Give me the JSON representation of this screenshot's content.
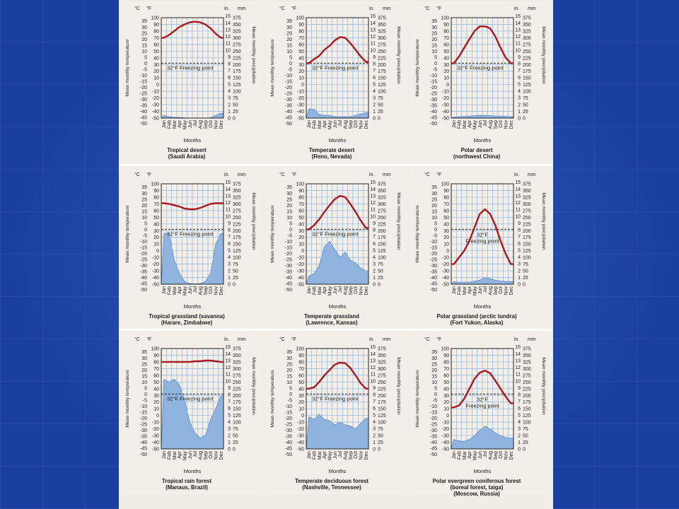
{
  "chart_data": [
    {
      "type": "line",
      "title": "Tropical desert",
      "subtitle": "(Saudi Arabia)",
      "temp_f": [
        70,
        74,
        80,
        86,
        90,
        93,
        94,
        93,
        90,
        84,
        76,
        70
      ],
      "precip_mm": [
        10,
        5,
        3,
        2,
        1,
        0,
        0,
        0,
        0,
        1,
        10,
        18
      ],
      "freezing_label": "32°F Freezing point"
    },
    {
      "type": "line",
      "title": "Temperate desert",
      "subtitle": "(Reno, Nevada)",
      "temp_f": [
        32,
        38,
        43,
        52,
        58,
        66,
        71,
        70,
        62,
        52,
        42,
        34
      ],
      "precip_mm": [
        34,
        33,
        13,
        10,
        10,
        5,
        5,
        5,
        5,
        10,
        15,
        20
      ],
      "freezing_label": "32°F Freezing point"
    },
    {
      "type": "line",
      "title": "Polar desert",
      "subtitle": "(northwest China)",
      "temp_f": [
        32,
        42,
        55,
        68,
        80,
        87,
        87,
        84,
        72,
        55,
        40,
        32
      ],
      "precip_mm": [
        4,
        5,
        6,
        7,
        9,
        10,
        10,
        9,
        8,
        7,
        6,
        5
      ],
      "freezing_label": "32°F Freezing point"
    },
    {
      "type": "line",
      "title": "Tropical grassland (savanna)",
      "subtitle": "(Harare, Zimbabwe)",
      "temp_f": [
        71,
        70,
        68,
        66,
        63,
        62,
        62,
        64,
        67,
        70,
        71,
        71
      ],
      "precip_mm": [
        190,
        190,
        90,
        40,
        10,
        2,
        1,
        2,
        10,
        40,
        150,
        190
      ],
      "freezing_label": "32°F Freezing point"
    },
    {
      "type": "line",
      "title": "Temperate grassland",
      "subtitle": "(Lawrence, Kansas)",
      "temp_f": [
        32,
        38,
        47,
        58,
        68,
        77,
        82,
        80,
        70,
        58,
        45,
        34
      ],
      "precip_mm": [
        30,
        40,
        70,
        140,
        160,
        130,
        100,
        120,
        90,
        80,
        60,
        50
      ],
      "freezing_label": "32°F Freezing point"
    },
    {
      "type": "line",
      "title": "Polar grassland (arctic tundra)",
      "subtitle": "(Fort Yukon, Alaska)",
      "temp_f": [
        -20,
        -10,
        0,
        15,
        35,
        55,
        62,
        55,
        38,
        15,
        -5,
        -20
      ],
      "precip_mm": [
        10,
        8,
        8,
        8,
        12,
        15,
        25,
        20,
        15,
        12,
        10,
        10
      ],
      "freezing_label": "32°F\nFreezing point"
    },
    {
      "type": "line",
      "title": "Tropical rain forest",
      "subtitle": "(Manaus, Brazil)",
      "temp_f": [
        80,
        80,
        80,
        80,
        80,
        80,
        81,
        81,
        82,
        82,
        81,
        80
      ],
      "precip_mm": [
        260,
        250,
        260,
        240,
        180,
        100,
        60,
        40,
        50,
        110,
        150,
        200
      ],
      "freezing_label": "32°F Freezing point"
    },
    {
      "type": "line",
      "title": "Temperate deciduous forest",
      "subtitle": "(Nashville, Tennessee)",
      "temp_f": [
        40,
        42,
        50,
        60,
        68,
        76,
        79,
        78,
        71,
        60,
        48,
        40
      ],
      "precip_mm": [
        120,
        110,
        130,
        110,
        105,
        90,
        100,
        90,
        85,
        75,
        95,
        115
      ],
      "freezing_label": "32°F Freezing point"
    },
    {
      "type": "line",
      "title": "Polar evergreen coniferous forest",
      "subtitle2": "(boreal forest, taiga)",
      "subtitle": "(Moscow, Russia)",
      "temp_f": [
        12,
        15,
        25,
        40,
        55,
        64,
        67,
        63,
        52,
        40,
        28,
        18
      ],
      "precip_mm": [
        35,
        30,
        28,
        35,
        50,
        70,
        85,
        75,
        60,
        50,
        42,
        40
      ],
      "freezing_label": "32°F\nFreezing point"
    }
  ],
  "axis": {
    "months": [
      "Jan",
      "Feb",
      "Mar",
      "Apr",
      "May",
      "Jun",
      "Jul",
      "Aug",
      "Sep",
      "Oct",
      "Nov",
      "Dec"
    ],
    "xlabel": "Months",
    "ylabel_left": "Mean monthly temperature",
    "ylabel_right": "Mean monthly precipitation",
    "unit_c": "°C",
    "unit_f": "°F",
    "unit_in": "in.",
    "unit_mm": "mm",
    "ticks_c": [
      35,
      30,
      25,
      20,
      15,
      10,
      5,
      0,
      -5,
      -10,
      -15,
      -20,
      -25,
      -30,
      -35,
      -40,
      -45,
      -50
    ],
    "ticks_f": [
      100,
      90,
      80,
      70,
      60,
      50,
      40,
      30,
      20,
      10,
      0,
      -10,
      -20,
      -30,
      -40,
      -50
    ],
    "ticks_in": [
      15,
      14,
      13,
      12,
      11,
      10,
      9,
      8,
      7,
      6,
      5,
      4,
      3,
      2,
      1,
      0
    ],
    "ticks_mm": [
      375,
      350,
      325,
      300,
      275,
      250,
      225,
      200,
      175,
      150,
      125,
      100,
      75,
      50,
      25,
      0
    ],
    "temp_range_f": [
      -50,
      100
    ],
    "precip_range_mm": [
      0,
      375
    ]
  },
  "colors": {
    "temp": "#a8191f",
    "precip": "#7fa9dc",
    "precip_line": "#2f6fbf",
    "grid": "#8cb3e0",
    "axis": "#222222"
  }
}
